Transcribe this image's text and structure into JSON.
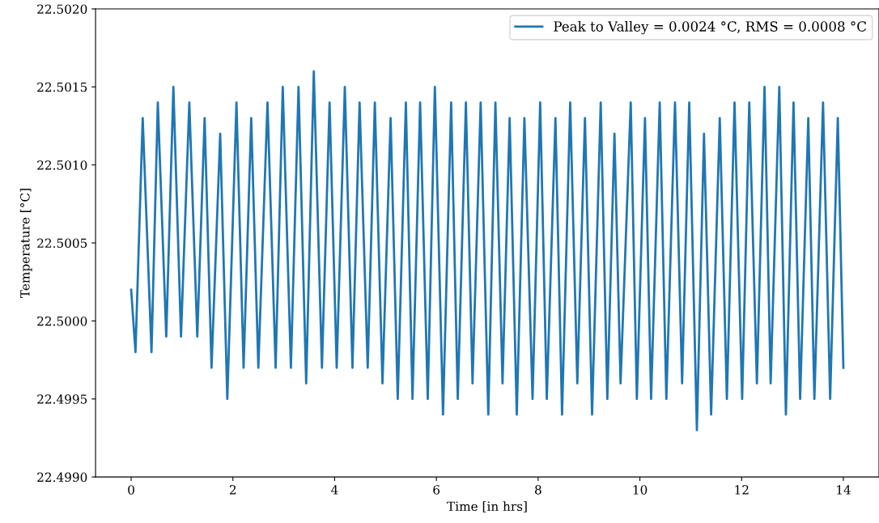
{
  "chart_data": {
    "type": "line",
    "xlabel": "Time [in hrs]",
    "ylabel": "Temperature [°C]",
    "xlim": [
      -0.7,
      14.7
    ],
    "xticks": [
      0,
      2,
      4,
      6,
      8,
      10,
      12,
      14
    ],
    "ylim": [
      22.499,
      22.502
    ],
    "yticks": [
      {
        "value": 22.499,
        "label": "22.4990"
      },
      {
        "value": 22.4995,
        "label": "22.4995"
      },
      {
        "value": 22.5,
        "label": "22.5000"
      },
      {
        "value": 22.5005,
        "label": "22.5005"
      },
      {
        "value": 22.501,
        "label": "22.5010"
      },
      {
        "value": 22.5015,
        "label": "22.5015"
      },
      {
        "value": 22.502,
        "label": "22.5020"
      }
    ],
    "grid": false,
    "legend": "top right",
    "series": [
      {
        "name": "Peak to Valley = 0.0024 °C, RMS = 0.0008 °C",
        "color": "#1f77b4",
        "x": [
          0,
          0.085,
          0.227,
          0.4,
          0.524,
          0.69,
          0.83,
          0.98,
          1.143,
          1.3,
          1.444,
          1.58,
          1.75,
          1.89,
          2.07,
          2.21,
          2.36,
          2.5,
          2.68,
          2.84,
          2.98,
          3.14,
          3.29,
          3.44,
          3.59,
          3.75,
          3.9,
          4.04,
          4.2,
          4.35,
          4.49,
          4.65,
          4.79,
          4.94,
          5.1,
          5.24,
          5.4,
          5.53,
          5.68,
          5.83,
          5.97,
          6.13,
          6.29,
          6.42,
          6.58,
          6.71,
          6.87,
          7.02,
          7.16,
          7.3,
          7.44,
          7.58,
          7.73,
          7.89,
          8.04,
          8.17,
          8.34,
          8.47,
          8.63,
          8.77,
          8.92,
          9.06,
          9.23,
          9.36,
          9.5,
          9.62,
          9.82,
          9.94,
          10.1,
          10.22,
          10.39,
          10.52,
          10.69,
          10.83,
          10.97,
          11.12,
          11.26,
          11.4,
          11.57,
          11.71,
          11.86,
          12.01,
          12.15,
          12.3,
          12.45,
          12.57,
          12.74,
          12.87,
          13.02,
          13.15,
          13.31,
          13.43,
          13.6,
          13.74,
          13.89,
          14.0
        ],
        "values": [
          22.5002,
          22.4998,
          22.5013,
          22.4998,
          22.5014,
          22.4999,
          22.5015,
          22.4999,
          22.5014,
          22.4999,
          22.5013,
          22.4997,
          22.5012,
          22.4995,
          22.5014,
          22.4997,
          22.5013,
          22.4997,
          22.5014,
          22.4997,
          22.5015,
          22.4997,
          22.5015,
          22.4996,
          22.5016,
          22.4997,
          22.5014,
          22.4997,
          22.5015,
          22.4997,
          22.5014,
          22.4997,
          22.5014,
          22.4996,
          22.5013,
          22.4995,
          22.5014,
          22.4995,
          22.5014,
          22.4995,
          22.5015,
          22.4994,
          22.5014,
          22.4995,
          22.5014,
          22.4996,
          22.5014,
          22.4994,
          22.5014,
          22.4996,
          22.5013,
          22.4994,
          22.5013,
          22.4995,
          22.5014,
          22.4995,
          22.5013,
          22.4994,
          22.5014,
          22.4996,
          22.5013,
          22.4994,
          22.5014,
          22.4995,
          22.5012,
          22.4996,
          22.5014,
          22.4995,
          22.5013,
          22.4995,
          22.5014,
          22.4995,
          22.5014,
          22.4996,
          22.5014,
          22.4993,
          22.5012,
          22.4994,
          22.5013,
          22.4995,
          22.5014,
          22.4995,
          22.5014,
          22.4996,
          22.5015,
          22.4996,
          22.5015,
          22.4994,
          22.5014,
          22.4995,
          22.5013,
          22.4995,
          22.5014,
          22.4995,
          22.5013,
          22.4997
        ]
      }
    ]
  }
}
